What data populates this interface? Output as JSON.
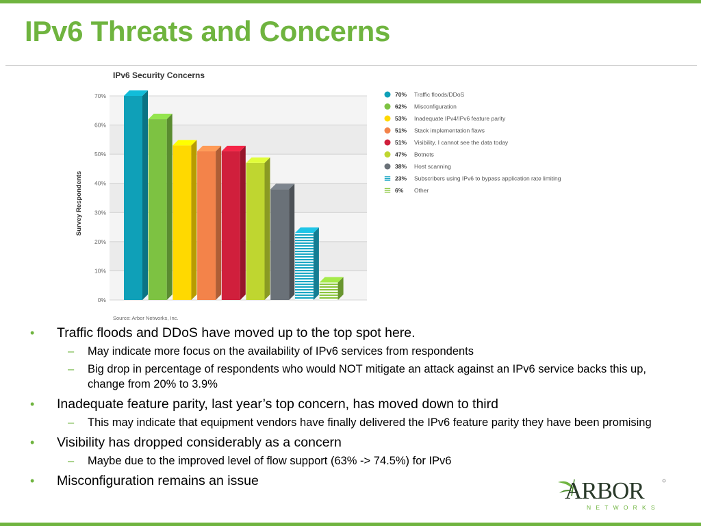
{
  "slide": {
    "title": "IPv6 Threats and Concerns",
    "accent_color": "#6fb43f"
  },
  "bullets": [
    {
      "text": "Traffic floods and DDoS have moved up to the top spot here.",
      "subs": [
        "May indicate more focus on the availability of IPv6 services from respondents",
        "Big drop in percentage of respondents who would NOT mitigate an attack against an IPv6 service backs this up, change from 20% to 3.9%"
      ]
    },
    {
      "text": "Inadequate feature parity, last year’s top concern, has moved down to third",
      "subs": [
        "This may indicate that equipment vendors have finally delivered the IPv6 feature parity they have been promising"
      ]
    },
    {
      "text": "Visibility has dropped considerably as a concern",
      "subs": [
        "Maybe due to the improved level of flow support (63% -> 74.5%) for IPv6"
      ]
    },
    {
      "text": "Misconfiguration remains an issue",
      "subs": []
    }
  ],
  "logo": {
    "name": "ARBOR",
    "tagline": "NETWORKS",
    "icon": "leaf-icon"
  },
  "chart_data": {
    "type": "bar",
    "title": "IPv6 Security Concerns",
    "ylabel": "Survey Respondents",
    "xlabel": "",
    "ylim": [
      0,
      70
    ],
    "yticks": [
      "0%",
      "10%",
      "20%",
      "30%",
      "40%",
      "50%",
      "60%",
      "70%"
    ],
    "grid": true,
    "legend_position": "right",
    "source": "Source: Arbor Networks, Inc.",
    "categories": [
      "Traffic floods/DDoS",
      "Misconfiguration",
      "Inadequate IPv4/IPv6 feature parity",
      "Stack implementation flaws",
      "Visibility, I cannot see the data today",
      "Botnets",
      "Host scanning",
      "Subscribers using IPv6 to bypass application rate limiting",
      "Other"
    ],
    "values": [
      70,
      62,
      53,
      51,
      51,
      47,
      38,
      23,
      6
    ],
    "value_labels": [
      "70%",
      "62%",
      "53%",
      "51%",
      "51%",
      "47%",
      "38%",
      "23%",
      "6%"
    ],
    "colors": [
      "#0fa0b8",
      "#7dc242",
      "#ffd900",
      "#f3834a",
      "#d01f3c",
      "#bfd630",
      "#6a7178",
      "#1aa7c4",
      "#8cc63f"
    ],
    "patterns": [
      "solid",
      "solid",
      "solid",
      "solid",
      "solid",
      "solid",
      "solid",
      "striped",
      "striped"
    ]
  }
}
